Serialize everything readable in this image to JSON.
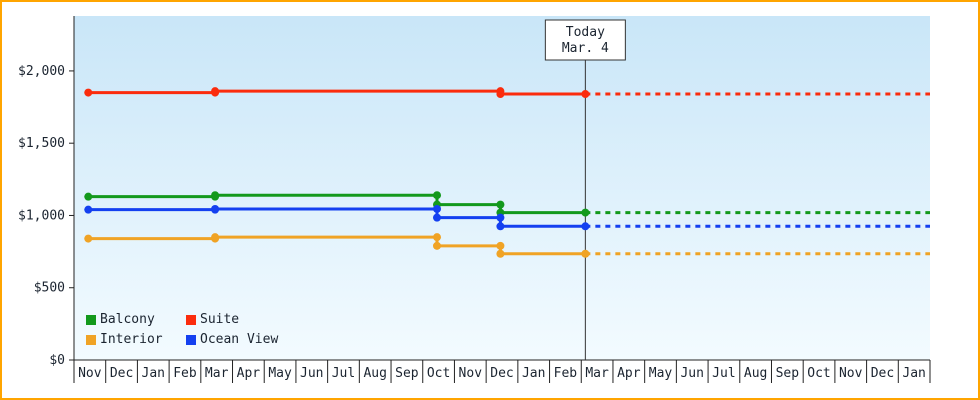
{
  "frame": {
    "border_color": "#ffa500"
  },
  "chart_data": {
    "type": "line",
    "title": "",
    "xlabel": "",
    "ylabel": "",
    "grid": false,
    "legend_position": "bottom-left",
    "background": {
      "top": "#c9e6f8",
      "bottom": "#f3fbff"
    },
    "x_months": [
      "Nov",
      "Dec",
      "Jan",
      "Feb",
      "Mar",
      "Apr",
      "May",
      "Jun",
      "Jul",
      "Aug",
      "Sep",
      "Oct",
      "Nov",
      "Dec",
      "Jan",
      "Feb",
      "Mar",
      "Apr",
      "May",
      "Jun",
      "Jul",
      "Aug",
      "Sep",
      "Oct",
      "Nov",
      "Dec",
      "Jan"
    ],
    "y_ticks": [
      {
        "value": 0,
        "label": "$0"
      },
      {
        "value": 500,
        "label": "$500"
      },
      {
        "value": 1000,
        "label": "$1,000"
      },
      {
        "value": 1500,
        "label": "$1,500"
      },
      {
        "value": 2000,
        "label": "$2,000"
      }
    ],
    "ylim": [
      0,
      2380
    ],
    "today": {
      "month_index": 16,
      "day": 4,
      "label_lines": [
        "Today",
        "Mar. 4"
      ]
    },
    "projection_style": "dotted-after-today",
    "series": [
      {
        "name": "Balcony",
        "color": "#13991c",
        "steps": [
          [
            0,
            1130
          ],
          [
            4,
            1140
          ],
          [
            11,
            1075
          ],
          [
            13,
            1020
          ]
        ]
      },
      {
        "name": "Suite",
        "color": "#fb2c0d",
        "steps": [
          [
            0,
            1850
          ],
          [
            4,
            1860
          ],
          [
            13,
            1840
          ]
        ]
      },
      {
        "name": "Interior",
        "color": "#f0a325",
        "steps": [
          [
            0,
            840
          ],
          [
            4,
            850
          ],
          [
            11,
            790
          ],
          [
            13,
            735
          ]
        ]
      },
      {
        "name": "Ocean View",
        "color": "#1440f0",
        "steps": [
          [
            0,
            1040
          ],
          [
            4,
            1045
          ],
          [
            11,
            985
          ],
          [
            13,
            925
          ]
        ]
      }
    ]
  }
}
